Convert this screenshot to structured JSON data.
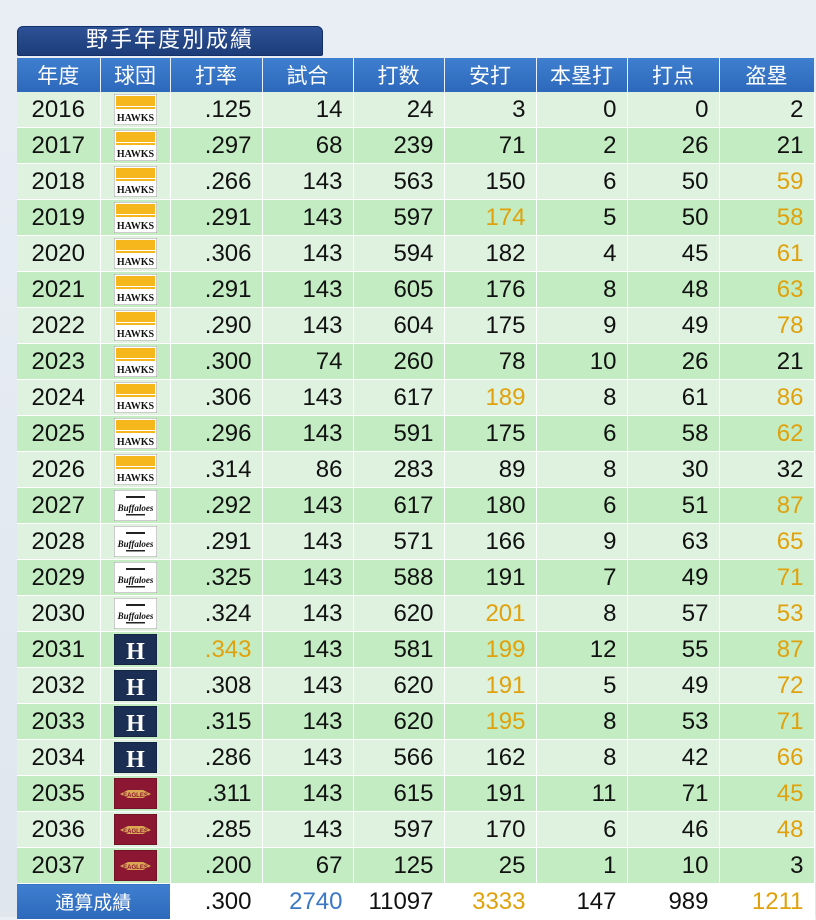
{
  "title": "野手年度別成績",
  "headers": [
    "年度",
    "球団",
    "打率",
    "試合",
    "打数",
    "安打",
    "本塁打",
    "打点",
    "盗塁"
  ],
  "rows": [
    {
      "year": "2016",
      "team": "hawks",
      "avg": ".125",
      "games": "14",
      "ab": "24",
      "hits": "3",
      "hr": "0",
      "rbi": "0",
      "sb": "2",
      "gold": []
    },
    {
      "year": "2017",
      "team": "hawks",
      "avg": ".297",
      "games": "68",
      "ab": "239",
      "hits": "71",
      "hr": "2",
      "rbi": "26",
      "sb": "21",
      "gold": []
    },
    {
      "year": "2018",
      "team": "hawks",
      "avg": ".266",
      "games": "143",
      "ab": "563",
      "hits": "150",
      "hr": "6",
      "rbi": "50",
      "sb": "59",
      "gold": [
        "sb"
      ]
    },
    {
      "year": "2019",
      "team": "hawks",
      "avg": ".291",
      "games": "143",
      "ab": "597",
      "hits": "174",
      "hr": "5",
      "rbi": "50",
      "sb": "58",
      "gold": [
        "hits",
        "sb"
      ]
    },
    {
      "year": "2020",
      "team": "hawks",
      "avg": ".306",
      "games": "143",
      "ab": "594",
      "hits": "182",
      "hr": "4",
      "rbi": "45",
      "sb": "61",
      "gold": [
        "sb"
      ]
    },
    {
      "year": "2021",
      "team": "hawks",
      "avg": ".291",
      "games": "143",
      "ab": "605",
      "hits": "176",
      "hr": "8",
      "rbi": "48",
      "sb": "63",
      "gold": [
        "sb"
      ]
    },
    {
      "year": "2022",
      "team": "hawks",
      "avg": ".290",
      "games": "143",
      "ab": "604",
      "hits": "175",
      "hr": "9",
      "rbi": "49",
      "sb": "78",
      "gold": [
        "sb"
      ]
    },
    {
      "year": "2023",
      "team": "hawks",
      "avg": ".300",
      "games": "74",
      "ab": "260",
      "hits": "78",
      "hr": "10",
      "rbi": "26",
      "sb": "21",
      "gold": []
    },
    {
      "year": "2024",
      "team": "hawks",
      "avg": ".306",
      "games": "143",
      "ab": "617",
      "hits": "189",
      "hr": "8",
      "rbi": "61",
      "sb": "86",
      "gold": [
        "hits",
        "sb"
      ]
    },
    {
      "year": "2025",
      "team": "hawks",
      "avg": ".296",
      "games": "143",
      "ab": "591",
      "hits": "175",
      "hr": "6",
      "rbi": "58",
      "sb": "62",
      "gold": [
        "sb"
      ]
    },
    {
      "year": "2026",
      "team": "hawks",
      "avg": ".314",
      "games": "86",
      "ab": "283",
      "hits": "89",
      "hr": "8",
      "rbi": "30",
      "sb": "32",
      "gold": []
    },
    {
      "year": "2027",
      "team": "buffaloes",
      "avg": ".292",
      "games": "143",
      "ab": "617",
      "hits": "180",
      "hr": "6",
      "rbi": "51",
      "sb": "87",
      "gold": [
        "sb"
      ]
    },
    {
      "year": "2028",
      "team": "buffaloes",
      "avg": ".291",
      "games": "143",
      "ab": "571",
      "hits": "166",
      "hr": "9",
      "rbi": "63",
      "sb": "65",
      "gold": [
        "sb"
      ]
    },
    {
      "year": "2029",
      "team": "buffaloes",
      "avg": ".325",
      "games": "143",
      "ab": "588",
      "hits": "191",
      "hr": "7",
      "rbi": "49",
      "sb": "71",
      "gold": [
        "sb"
      ]
    },
    {
      "year": "2030",
      "team": "buffaloes",
      "avg": ".324",
      "games": "143",
      "ab": "620",
      "hits": "201",
      "hr": "8",
      "rbi": "57",
      "sb": "53",
      "gold": [
        "hits",
        "sb"
      ]
    },
    {
      "year": "2031",
      "team": "fighters",
      "avg": ".343",
      "games": "143",
      "ab": "581",
      "hits": "199",
      "hr": "12",
      "rbi": "55",
      "sb": "87",
      "gold": [
        "avg",
        "hits",
        "sb"
      ]
    },
    {
      "year": "2032",
      "team": "fighters",
      "avg": ".308",
      "games": "143",
      "ab": "620",
      "hits": "191",
      "hr": "5",
      "rbi": "49",
      "sb": "72",
      "gold": [
        "hits",
        "sb"
      ]
    },
    {
      "year": "2033",
      "team": "fighters",
      "avg": ".315",
      "games": "143",
      "ab": "620",
      "hits": "195",
      "hr": "8",
      "rbi": "53",
      "sb": "71",
      "gold": [
        "hits",
        "sb"
      ]
    },
    {
      "year": "2034",
      "team": "fighters",
      "avg": ".286",
      "games": "143",
      "ab": "566",
      "hits": "162",
      "hr": "8",
      "rbi": "42",
      "sb": "66",
      "gold": [
        "sb"
      ]
    },
    {
      "year": "2035",
      "team": "eagles",
      "avg": ".311",
      "games": "143",
      "ab": "615",
      "hits": "191",
      "hr": "11",
      "rbi": "71",
      "sb": "45",
      "gold": [
        "sb"
      ]
    },
    {
      "year": "2036",
      "team": "eagles",
      "avg": ".285",
      "games": "143",
      "ab": "597",
      "hits": "170",
      "hr": "6",
      "rbi": "46",
      "sb": "48",
      "gold": [
        "sb"
      ]
    },
    {
      "year": "2037",
      "team": "eagles",
      "avg": ".200",
      "games": "67",
      "ab": "125",
      "hits": "25",
      "hr": "1",
      "rbi": "10",
      "sb": "3",
      "gold": []
    }
  ],
  "total": {
    "label": "通算成績",
    "avg": ".300",
    "games": "2740",
    "ab": "11097",
    "hits": "3333",
    "hr": "147",
    "rbi": "989",
    "sb": "1211"
  },
  "logos": {
    "hawks": {
      "text": "HAWKS",
      "icon": "hawks-logo-icon"
    },
    "buffaloes": {
      "text": "Buffaloes",
      "icon": "buffaloes-logo-icon"
    },
    "fighters": {
      "text": "H",
      "icon": "fighters-logo-icon"
    },
    "eagles": {
      "text": "EAGLES",
      "icon": "eagles-logo-icon"
    }
  },
  "colors": {
    "header_blue": "#2d68bb",
    "row_light": "#dff2df",
    "row_dark": "#c3ecc2",
    "highlight_gold": "#e0a10c",
    "total_blue": "#3a78c6"
  }
}
